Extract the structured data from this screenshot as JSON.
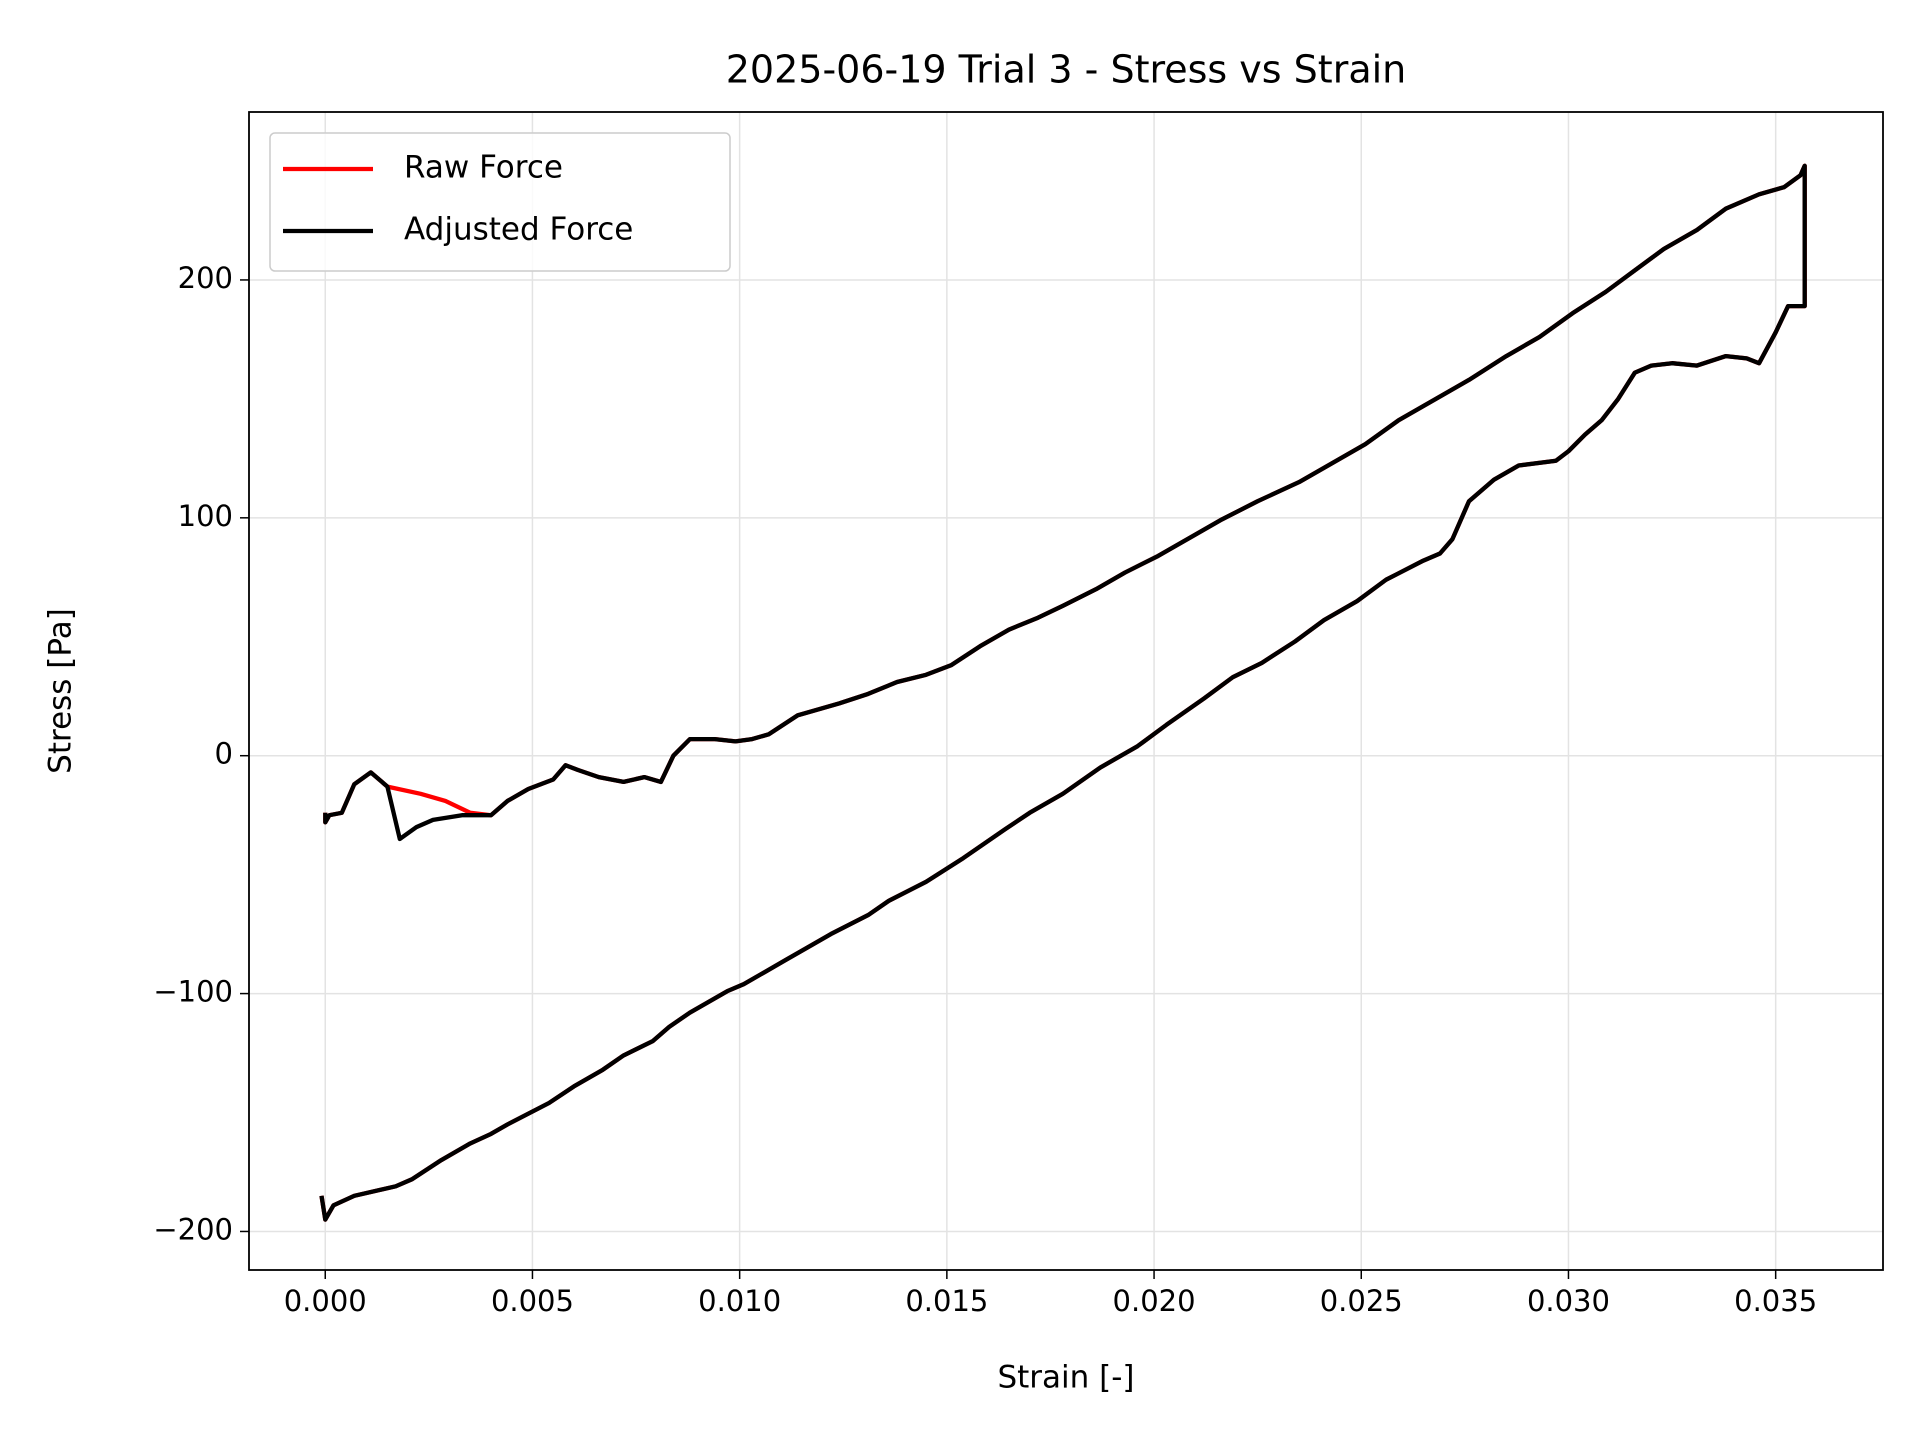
{
  "chart_data": {
    "type": "line",
    "title": "2025-06-19 Trial 3 - Stress vs Strain",
    "xlabel": "Strain [-]",
    "ylabel": "Stress [Pa]",
    "xlim": [
      -0.00184,
      0.03759
    ],
    "ylim": [
      -216.2,
      270.6
    ],
    "xticks": [
      {
        "value": 0,
        "label": "0.000"
      },
      {
        "value": 0.005,
        "label": "0.005"
      },
      {
        "value": 0.01,
        "label": "0.010"
      },
      {
        "value": 0.015,
        "label": "0.015"
      },
      {
        "value": 0.02,
        "label": "0.020"
      },
      {
        "value": 0.025,
        "label": "0.025"
      },
      {
        "value": 0.03,
        "label": "0.030"
      },
      {
        "value": 0.035,
        "label": "0.035"
      }
    ],
    "yticks": [
      {
        "value": -200,
        "label": "−200"
      },
      {
        "value": -100,
        "label": "−100"
      },
      0,
      100,
      200
    ],
    "grid": true,
    "legend": "upper left",
    "series": [
      {
        "name": "Raw Force",
        "color": "#ff0000",
        "x": [
          -9e-05,
          0,
          0.0002,
          0.0007,
          0.0017,
          0.0021,
          0.0028,
          0.0035,
          0.004,
          0.0044,
          0.0054,
          0.006,
          0.0067,
          0.0072,
          0.0079,
          0.0083,
          0.0088,
          0.0097,
          0.0101,
          0.0106,
          0.0111,
          0.0117,
          0.0122,
          0.0131,
          0.0136,
          0.0145,
          0.0154,
          0.0164,
          0.017,
          0.0178,
          0.0187,
          0.0196,
          0.0203,
          0.0212,
          0.0219,
          0.0226,
          0.0234,
          0.0241,
          0.0249,
          0.0256,
          0.0265,
          0.0269,
          0.0272,
          0.0276,
          0.0282,
          0.0288,
          0.0297,
          0.03,
          0.0304,
          0.0308,
          0.0312,
          0.0316,
          0.032,
          0.0325,
          0.0331,
          0.0338,
          0.0343,
          0.0346,
          0.035,
          0.0353,
          0.0357,
          0.0357,
          0.0357,
          0.0356,
          0.0352,
          0.0346,
          0.0338,
          0.0331,
          0.0323,
          0.0316,
          0.0309,
          0.0301,
          0.0293,
          0.0285,
          0.0276,
          0.0268,
          0.0259,
          0.0251,
          0.0244,
          0.0235,
          0.0225,
          0.0216,
          0.0209,
          0.0201,
          0.0193,
          0.0186,
          0.0178,
          0.0172,
          0.0165,
          0.0158,
          0.0151,
          0.0145,
          0.0138,
          0.0131,
          0.0124,
          0.0116,
          0.0114,
          0.0107,
          0.0103,
          0.0099,
          0.0094,
          0.0088,
          0.0084,
          0.0081,
          0.0077,
          0.0072,
          0.0066,
          0.0061,
          0.0058,
          0.0055,
          0.0049,
          0.0044,
          0.004,
          0.0035,
          0.0029,
          0.0023,
          0.0015,
          0.0011,
          0.0007,
          0.0004,
          0.0001,
          0,
          0
        ],
        "values": [
          -185,
          -195,
          -189,
          -185,
          -181,
          -178,
          -170,
          -163,
          -159,
          -155,
          -146,
          -139,
          -132,
          -126,
          -120,
          -114,
          -108,
          -99,
          -96,
          -91,
          -86,
          -80,
          -75,
          -67,
          -61,
          -53,
          -43,
          -31,
          -24,
          -16,
          -5,
          4,
          13,
          24,
          33,
          39,
          48,
          57,
          65,
          74,
          82,
          85,
          91,
          107,
          116,
          122,
          124,
          128,
          135,
          141,
          150,
          161,
          164,
          165,
          164,
          168,
          167,
          165,
          178,
          189,
          189,
          245,
          248,
          244,
          239,
          236,
          230,
          221,
          213,
          204,
          195,
          186,
          176,
          168,
          158,
          150,
          141,
          131,
          124,
          115,
          107,
          99,
          92,
          84,
          77,
          70,
          63,
          58,
          53,
          46,
          38,
          34,
          31,
          26,
          22,
          18,
          17,
          9,
          7,
          6,
          7,
          7,
          0,
          -11,
          -9,
          -11,
          -9,
          -6,
          -4,
          -10,
          -14,
          -19,
          -25,
          -24,
          -19,
          -16,
          -13,
          -7,
          -12,
          -24,
          -25,
          -28,
          -24
        ]
      },
      {
        "name": "Adjusted Force",
        "color": "#000000",
        "x": [
          -9e-05,
          0,
          0.0002,
          0.0007,
          0.0017,
          0.0021,
          0.0028,
          0.0035,
          0.004,
          0.0044,
          0.0054,
          0.006,
          0.0067,
          0.0072,
          0.0079,
          0.0083,
          0.0088,
          0.0097,
          0.0101,
          0.0106,
          0.0111,
          0.0117,
          0.0122,
          0.0131,
          0.0136,
          0.0145,
          0.0154,
          0.0164,
          0.017,
          0.0178,
          0.0187,
          0.0196,
          0.0203,
          0.0212,
          0.0219,
          0.0226,
          0.0234,
          0.0241,
          0.0249,
          0.0256,
          0.0265,
          0.0269,
          0.0272,
          0.0276,
          0.0282,
          0.0288,
          0.0297,
          0.03,
          0.0304,
          0.0308,
          0.0312,
          0.0316,
          0.032,
          0.0325,
          0.0331,
          0.0338,
          0.0343,
          0.0346,
          0.035,
          0.0353,
          0.0357,
          0.0357,
          0.0357,
          0.0356,
          0.0352,
          0.0346,
          0.0338,
          0.0331,
          0.0323,
          0.0316,
          0.0309,
          0.0301,
          0.0293,
          0.0285,
          0.0276,
          0.0268,
          0.0259,
          0.0251,
          0.0244,
          0.0235,
          0.0225,
          0.0216,
          0.0209,
          0.0201,
          0.0193,
          0.0186,
          0.0178,
          0.0172,
          0.0165,
          0.0158,
          0.0151,
          0.0145,
          0.0138,
          0.0131,
          0.0124,
          0.0116,
          0.0114,
          0.0107,
          0.0103,
          0.0099,
          0.0094,
          0.0088,
          0.0084,
          0.0081,
          0.0077,
          0.0072,
          0.0066,
          0.0061,
          0.0058,
          0.0055,
          0.0049,
          0.0044,
          0.004,
          0.0033,
          0.0026,
          0.0022,
          0.0018,
          0.0015,
          0.0011,
          0.0007,
          0.0004,
          0.0001,
          0,
          0
        ],
        "values": [
          -185,
          -195,
          -189,
          -185,
          -181,
          -178,
          -170,
          -163,
          -159,
          -155,
          -146,
          -139,
          -132,
          -126,
          -120,
          -114,
          -108,
          -99,
          -96,
          -91,
          -86,
          -80,
          -75,
          -67,
          -61,
          -53,
          -43,
          -31,
          -24,
          -16,
          -5,
          4,
          13,
          24,
          33,
          39,
          48,
          57,
          65,
          74,
          82,
          85,
          91,
          107,
          116,
          122,
          124,
          128,
          135,
          141,
          150,
          161,
          164,
          165,
          164,
          168,
          167,
          165,
          178,
          189,
          189,
          245,
          248,
          244,
          239,
          236,
          230,
          221,
          213,
          204,
          195,
          186,
          176,
          168,
          158,
          150,
          141,
          131,
          124,
          115,
          107,
          99,
          92,
          84,
          77,
          70,
          63,
          58,
          53,
          46,
          38,
          34,
          31,
          26,
          22,
          18,
          17,
          9,
          7,
          6,
          7,
          7,
          0,
          -11,
          -9,
          -11,
          -9,
          -6,
          -4,
          -10,
          -14,
          -19,
          -25,
          -25,
          -27,
          -30,
          -35,
          -13,
          -7,
          -12,
          -24,
          -25,
          -28,
          -24
        ]
      }
    ]
  }
}
